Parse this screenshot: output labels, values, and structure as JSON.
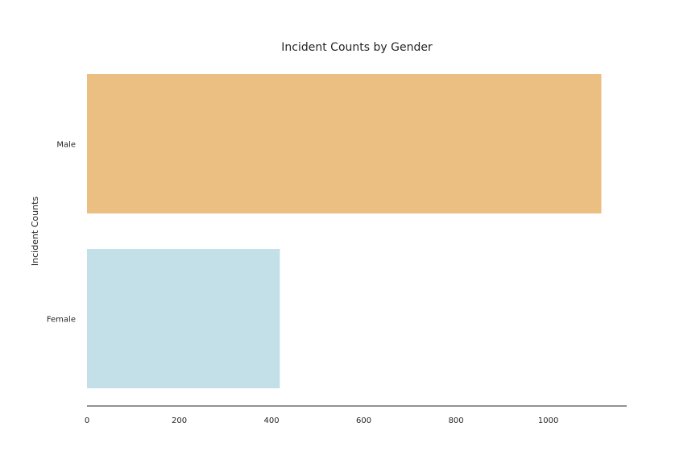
{
  "chart_data": {
    "type": "bar",
    "orientation": "horizontal",
    "title": "Incident Counts by Gender",
    "xlabel": "",
    "ylabel": "Incident Counts",
    "categories": [
      "Male",
      "Female"
    ],
    "values": [
      1115,
      418
    ],
    "colors": [
      "#EBBE82",
      "#C3E0E8"
    ],
    "xticks": [
      0,
      200,
      400,
      600,
      800,
      1000
    ],
    "xlim": [
      0,
      1170
    ],
    "grid": false,
    "legend": "none"
  }
}
